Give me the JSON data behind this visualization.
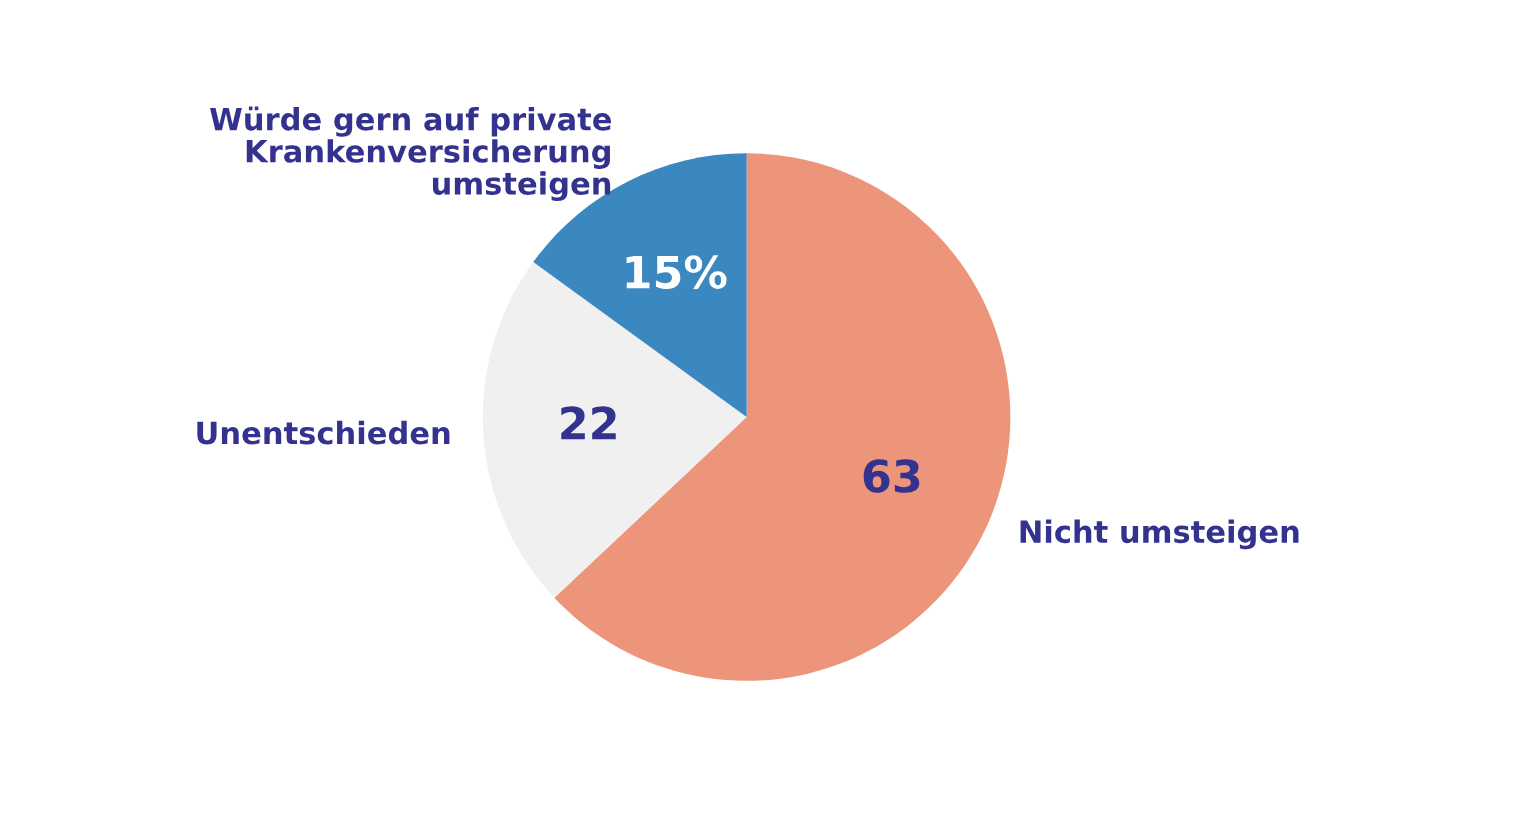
{
  "chart_data": {
    "type": "pie",
    "categories": [
      "Nicht umsteigen",
      "Unentschieden",
      "Würde gern auf private\nKrankenversicherung\numsteigen"
    ],
    "values": [
      63,
      22,
      15
    ],
    "value_labels": [
      "63",
      "22",
      "15%"
    ],
    "colors": [
      "#ed957a",
      "#f0f0f0",
      "#3b87c0"
    ]
  }
}
